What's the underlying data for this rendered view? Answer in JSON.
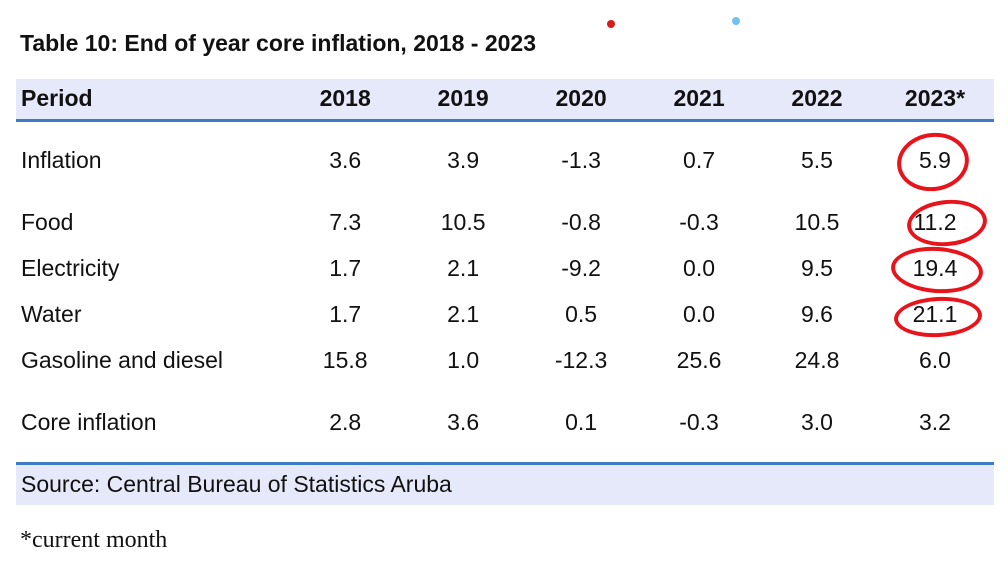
{
  "title": "Table 10: End of year core inflation, 2018 - 2023",
  "table": {
    "headers": [
      "Period",
      "2018",
      "2019",
      "2020",
      "2021",
      "2022",
      "2023*"
    ],
    "rows": [
      {
        "label": "Inflation",
        "values": [
          "3.6",
          "3.9",
          "-1.3",
          "0.7",
          "5.5",
          "5.9"
        ]
      },
      {
        "label": "Food",
        "values": [
          "7.3",
          "10.5",
          "-0.8",
          "-0.3",
          "10.5",
          "11.2"
        ]
      },
      {
        "label": "Electricity",
        "values": [
          "1.7",
          "2.1",
          "-9.2",
          "0.0",
          "9.5",
          "19.4"
        ]
      },
      {
        "label": "Water",
        "values": [
          "1.7",
          "2.1",
          "0.5",
          "0.0",
          "9.6",
          "21.1"
        ]
      },
      {
        "label": "Gasoline and diesel",
        "values": [
          "15.8",
          "1.0",
          "-12.3",
          "25.6",
          "24.8",
          "6.0"
        ]
      },
      {
        "label": "Core inflation",
        "values": [
          "2.8",
          "3.6",
          "0.1",
          "-0.3",
          "3.0",
          "3.2"
        ]
      }
    ],
    "source": "Source: Central Bureau of Statistics Aruba"
  },
  "footnote": "*current month",
  "colors": {
    "header_bg": "#e6e9fa",
    "rule": "#3f7ac4",
    "annotation": "#e8141c"
  }
}
